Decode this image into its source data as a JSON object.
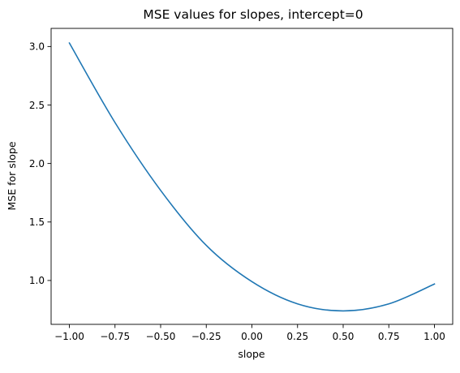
{
  "chart_data": {
    "type": "line",
    "title": "MSE values for slopes, intercept=0",
    "xlabel": "slope",
    "ylabel": "MSE for slope",
    "xlim": [
      -1.1,
      1.1
    ],
    "ylim": [
      0.625,
      3.155
    ],
    "xticks": [
      -1.0,
      -0.75,
      -0.5,
      -0.25,
      0.0,
      0.25,
      0.5,
      0.75,
      1.0
    ],
    "xtick_labels": [
      "−1.00",
      "−0.75",
      "−0.50",
      "−0.25",
      "0.00",
      "0.25",
      "0.50",
      "0.75",
      "1.00"
    ],
    "yticks": [
      1.0,
      1.5,
      2.0,
      2.5,
      3.0
    ],
    "ytick_labels": [
      "1.0",
      "1.5",
      "2.0",
      "2.5",
      "3.0"
    ],
    "grid": false,
    "legend": "none",
    "series": [
      {
        "color": "#1f77b4",
        "x": [
          -1.0,
          -0.75,
          -0.5,
          -0.25,
          0.0,
          0.25,
          0.5,
          0.75,
          1.0
        ],
        "y": [
          3.03,
          2.35,
          1.77,
          1.3,
          0.99,
          0.8,
          0.74,
          0.8,
          0.97
        ]
      }
    ]
  }
}
